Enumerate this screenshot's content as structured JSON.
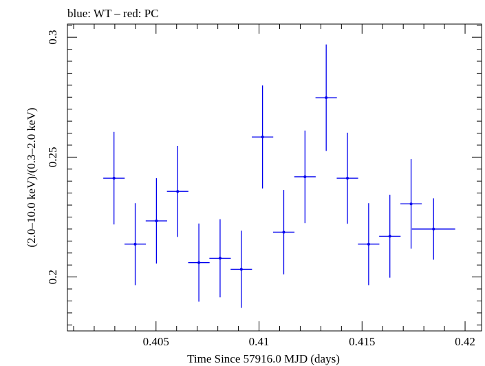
{
  "chart_data": {
    "type": "scatter",
    "title": "blue: WT – red: PC",
    "xlabel": "Time Since 57916.0 MJD (days)",
    "ylabel": "(2.0–10.0 keV)/(0.3–2.0 keV)",
    "xlim": [
      0.4007,
      0.4208
    ],
    "ylim": [
      0.1775,
      0.3055
    ],
    "x_ticks": [
      "0.405",
      "0.41",
      "0.415",
      "0.42"
    ],
    "x_tick_values": [
      0.405,
      0.41,
      0.415,
      0.42
    ],
    "y_ticks": [
      "0.2",
      "0.25",
      "0.3"
    ],
    "y_tick_values": [
      0.2,
      0.25,
      0.3
    ],
    "grid": false,
    "series": [
      {
        "color": "#0000ee",
        "points": [
          {
            "x": 0.40296,
            "xerr": 0.00052,
            "y": 0.2412,
            "yerr": 0.0193
          },
          {
            "x": 0.40399,
            "xerr": 0.00052,
            "y": 0.2137,
            "yerr": 0.0171
          },
          {
            "x": 0.40502,
            "xerr": 0.00052,
            "y": 0.2234,
            "yerr": 0.0178
          },
          {
            "x": 0.40605,
            "xerr": 0.00052,
            "y": 0.2357,
            "yerr": 0.019
          },
          {
            "x": 0.40708,
            "xerr": 0.00052,
            "y": 0.206,
            "yerr": 0.0163
          },
          {
            "x": 0.40811,
            "xerr": 0.00052,
            "y": 0.2078,
            "yerr": 0.0163
          },
          {
            "x": 0.40914,
            "xerr": 0.00052,
            "y": 0.2032,
            "yerr": 0.0161
          },
          {
            "x": 0.41017,
            "xerr": 0.00052,
            "y": 0.2584,
            "yerr": 0.0215
          },
          {
            "x": 0.4112,
            "xerr": 0.00052,
            "y": 0.2187,
            "yerr": 0.0176
          },
          {
            "x": 0.41223,
            "xerr": 0.00052,
            "y": 0.2418,
            "yerr": 0.0193
          },
          {
            "x": 0.41326,
            "xerr": 0.00052,
            "y": 0.2748,
            "yerr": 0.0222
          },
          {
            "x": 0.41429,
            "xerr": 0.00052,
            "y": 0.2412,
            "yerr": 0.019
          },
          {
            "x": 0.41532,
            "xerr": 0.00052,
            "y": 0.2137,
            "yerr": 0.0171
          },
          {
            "x": 0.41635,
            "xerr": 0.00052,
            "y": 0.217,
            "yerr": 0.0173
          },
          {
            "x": 0.41738,
            "xerr": 0.00052,
            "y": 0.2305,
            "yerr": 0.0187
          },
          {
            "x": 0.41847,
            "xerr": 0.00105,
            "y": 0.22,
            "yerr": 0.0128
          }
        ]
      }
    ]
  }
}
